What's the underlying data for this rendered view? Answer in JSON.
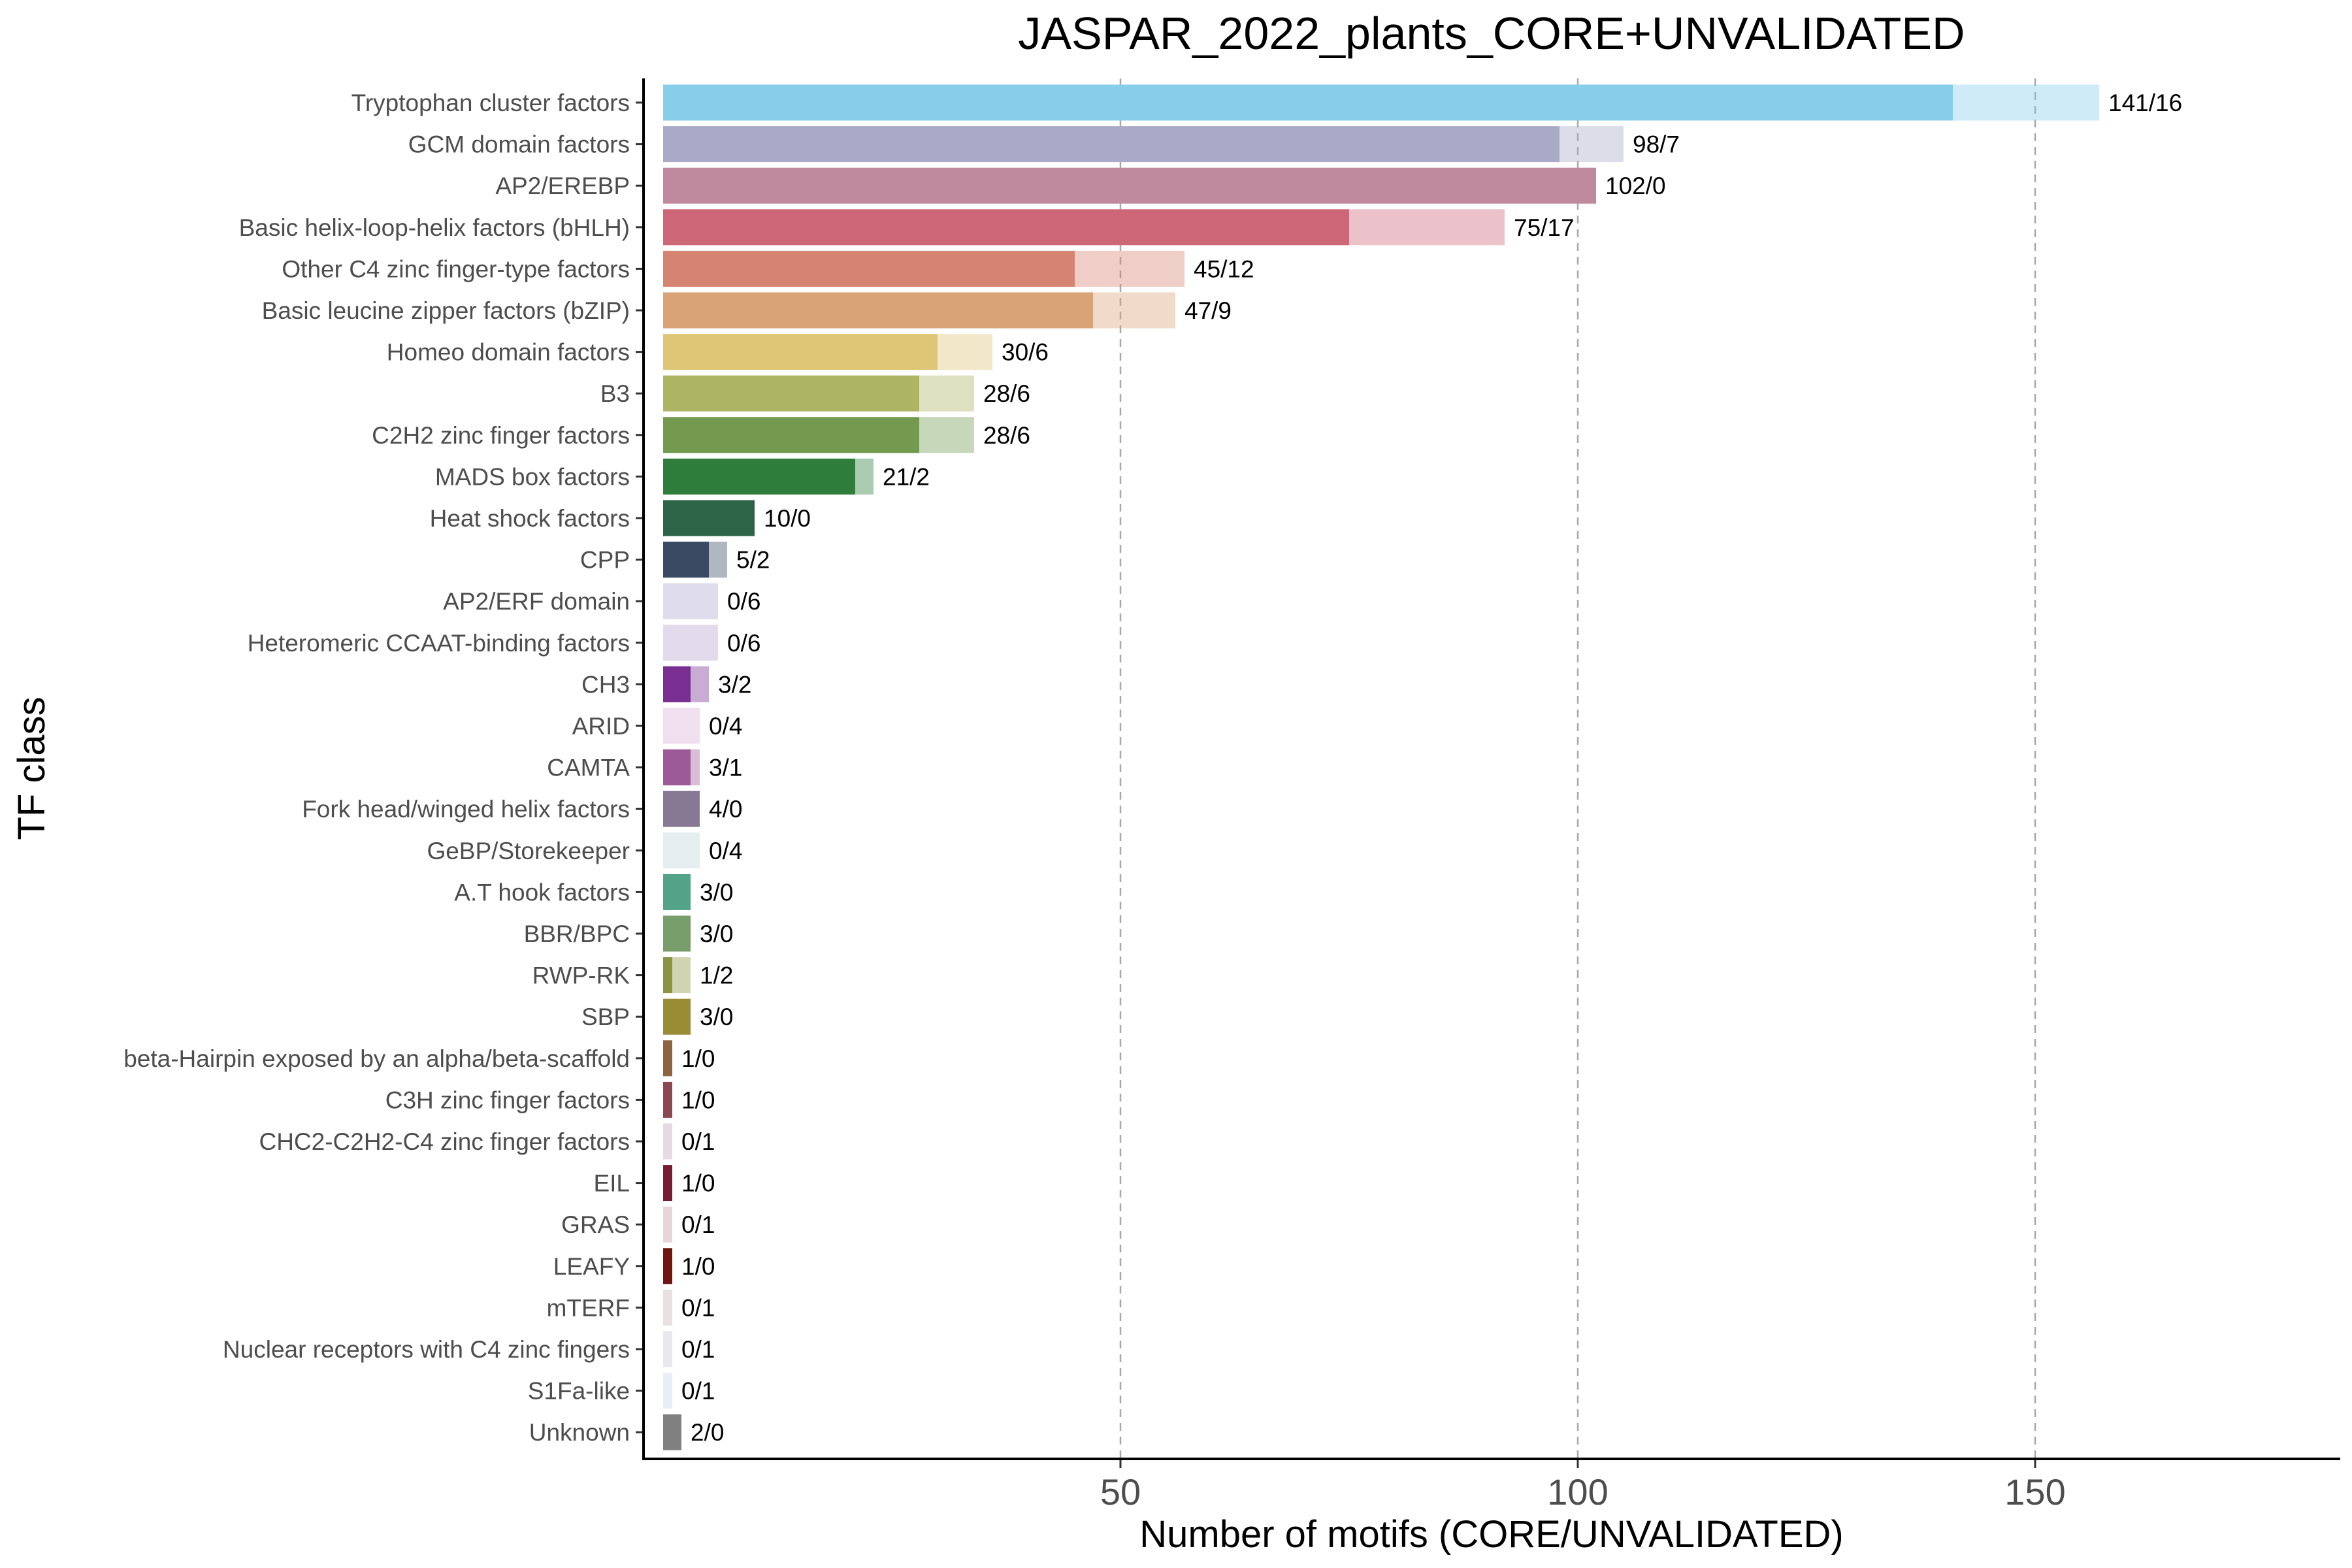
{
  "chart_data": {
    "type": "bar",
    "orientation": "horizontal",
    "stacked": true,
    "title": "JASPAR_2022_plants_CORE+UNVALIDATED",
    "xlabel": "Number of motifs (CORE/UNVALIDATED)",
    "ylabel": "TF class",
    "xlim": [
      0,
      184
    ],
    "xticks": [
      50,
      100,
      150
    ],
    "grid": "vertical dashed at x ticks",
    "legend": "none",
    "categories": [
      "Tryptophan cluster factors",
      "GCM domain factors",
      "AP2/EREBP",
      "Basic helix-loop-helix factors (bHLH)",
      "Other C4 zinc finger-type factors",
      "Basic leucine zipper factors (bZIP)",
      "Homeo domain factors",
      "B3",
      "C2H2 zinc finger factors",
      "MADS box factors",
      "Heat shock factors",
      "CPP",
      "AP2/ERF domain",
      "Heteromeric CCAAT-binding factors",
      "CH3",
      "ARID",
      "CAMTA",
      "Fork head/winged helix factors",
      "GeBP/Storekeeper",
      "A.T hook factors",
      "BBR/BPC",
      "RWP-RK",
      "SBP",
      "beta-Hairpin exposed by an alpha/beta-scaffold",
      "C3H zinc finger factors",
      "CHC2-C2H2-C4 zinc finger factors",
      "EIL",
      "GRAS",
      "LEAFY",
      "mTERF",
      "Nuclear receptors with C4 zinc fingers",
      "S1Fa-like",
      "Unknown"
    ],
    "series": [
      {
        "name": "CORE",
        "values": [
          141,
          98,
          102,
          75,
          45,
          47,
          30,
          28,
          28,
          21,
          10,
          5,
          0,
          0,
          3,
          0,
          3,
          4,
          0,
          3,
          3,
          1,
          3,
          1,
          1,
          0,
          1,
          0,
          1,
          0,
          0,
          0,
          2
        ]
      },
      {
        "name": "UNVALIDATED",
        "values": [
          16,
          7,
          0,
          17,
          12,
          9,
          6,
          6,
          6,
          2,
          0,
          2,
          6,
          6,
          2,
          4,
          1,
          0,
          4,
          0,
          0,
          2,
          0,
          0,
          0,
          1,
          0,
          1,
          0,
          1,
          1,
          1,
          0
        ]
      }
    ],
    "value_labels": [
      "141/16",
      "98/7",
      "102/0",
      "75/17",
      "45/12",
      "47/9",
      "30/6",
      "28/6",
      "28/6",
      "21/2",
      "10/0",
      "5/2",
      "0/6",
      "0/6",
      "3/2",
      "0/4",
      "3/1",
      "4/0",
      "0/4",
      "3/0",
      "3/0",
      "1/2",
      "3/0",
      "1/0",
      "1/0",
      "0/1",
      "1/0",
      "0/1",
      "1/0",
      "0/1",
      "0/1",
      "0/1",
      "2/0"
    ],
    "colors": [
      "#87ceeb",
      "#a9a9c8",
      "#c08a9e",
      "#cd6677",
      "#d68472",
      "#d9a277",
      "#dfc677",
      "#adb463",
      "#739a4f",
      "#2e7d3a",
      "#2d6448",
      "#3a4a63",
      "#aeaacc",
      "#b7a5cd",
      "#782f91",
      "#d9b0d6",
      "#9c5a98",
      "#877993",
      "#bdd3d6",
      "#52a388",
      "#779d6b",
      "#8b9440",
      "#9a8c35",
      "#8c6540",
      "#8c4852",
      "#c1a0b5",
      "#7a1b34",
      "#c2999e",
      "#701510",
      "#c7b2b5",
      "#c8c6d2",
      "#c2d6e9",
      "#808080"
    ],
    "unvalidated_opacity": 0.4
  }
}
